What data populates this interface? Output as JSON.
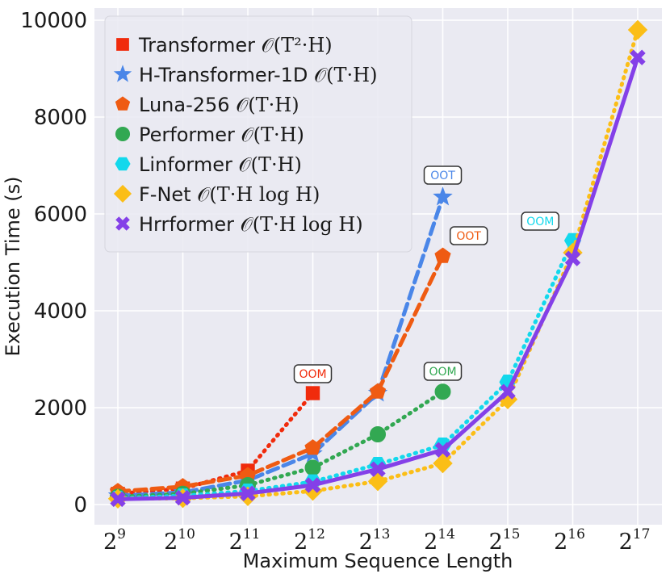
{
  "chart_data": {
    "type": "line",
    "xlabel": "Maximum Sequence Length",
    "ylabel": "Execution Time (s)",
    "ylim": [
      -400,
      10300
    ],
    "yticks": [
      0,
      2000,
      4000,
      6000,
      8000,
      10000
    ],
    "categories": [
      {
        "base": "2",
        "exp": "9"
      },
      {
        "base": "2",
        "exp": "10"
      },
      {
        "base": "2",
        "exp": "11"
      },
      {
        "base": "2",
        "exp": "12"
      },
      {
        "base": "2",
        "exp": "13"
      },
      {
        "base": "2",
        "exp": "14"
      },
      {
        "base": "2",
        "exp": "15"
      },
      {
        "base": "2",
        "exp": "16"
      },
      {
        "base": "2",
        "exp": "17"
      }
    ],
    "legend_position": "top-left",
    "grid": true,
    "series": [
      {
        "name": "Transformer",
        "complexity": "𝒪(T²·H)",
        "color": "#f02b0c",
        "marker": "square",
        "dash": "dotted",
        "width": 5,
        "values": [
          220,
          330,
          700,
          2300,
          null,
          null,
          null,
          null,
          null
        ]
      },
      {
        "name": "H-Transformer-1D",
        "complexity": "𝒪(T·H)",
        "color": "#4a86e8",
        "marker": "star",
        "dash": "dashed",
        "width": 5,
        "values": [
          180,
          250,
          500,
          1050,
          2300,
          6350,
          null,
          null,
          null
        ]
      },
      {
        "name": "Luna-256",
        "complexity": "𝒪(T·H)",
        "color": "#ef5b12",
        "marker": "pentagon",
        "dash": "dashed",
        "width": 5,
        "values": [
          270,
          370,
          600,
          1170,
          2330,
          5130,
          null,
          null,
          null
        ]
      },
      {
        "name": "Performer",
        "complexity": "𝒪(T·H)",
        "color": "#32a852",
        "marker": "circle",
        "dash": "dotted",
        "width": 5,
        "values": [
          160,
          220,
          400,
          760,
          1450,
          2330,
          null,
          null,
          null
        ]
      },
      {
        "name": "Linformer",
        "complexity": "𝒪(T·H)",
        "color": "#13d8ec",
        "marker": "hexagon",
        "dash": "dotted",
        "width": 5,
        "values": [
          130,
          180,
          280,
          470,
          830,
          1230,
          2530,
          5450,
          null
        ]
      },
      {
        "name": "F-Net",
        "complexity": "𝒪(T·H log H)",
        "color": "#fbbe17",
        "marker": "diamond",
        "dash": "dotted",
        "width": 5,
        "values": [
          120,
          130,
          170,
          280,
          480,
          850,
          2170,
          5200,
          9800
        ]
      },
      {
        "name": "Hrrformer",
        "complexity": "𝒪(T·H log H)",
        "color": "#8440e8",
        "marker": "x",
        "dash": "solid",
        "width": 5,
        "values": [
          110,
          140,
          230,
          400,
          730,
          1130,
          2330,
          5080,
          9230
        ]
      }
    ],
    "annotations": [
      {
        "text": "OOM",
        "color": "#f02b0c",
        "x_index": 3,
        "y": 2700
      },
      {
        "text": "OOT",
        "color": "#4a86e8",
        "x_index": 5,
        "y": 6800
      },
      {
        "text": "OOT",
        "color": "#ef5b12",
        "x_index": 5.4,
        "y": 5550
      },
      {
        "text": "OOM",
        "color": "#32a852",
        "x_index": 5,
        "y": 2750
      },
      {
        "text": "OOM",
        "color": "#13d8ec",
        "x_index": 6.5,
        "y": 5850
      }
    ]
  }
}
